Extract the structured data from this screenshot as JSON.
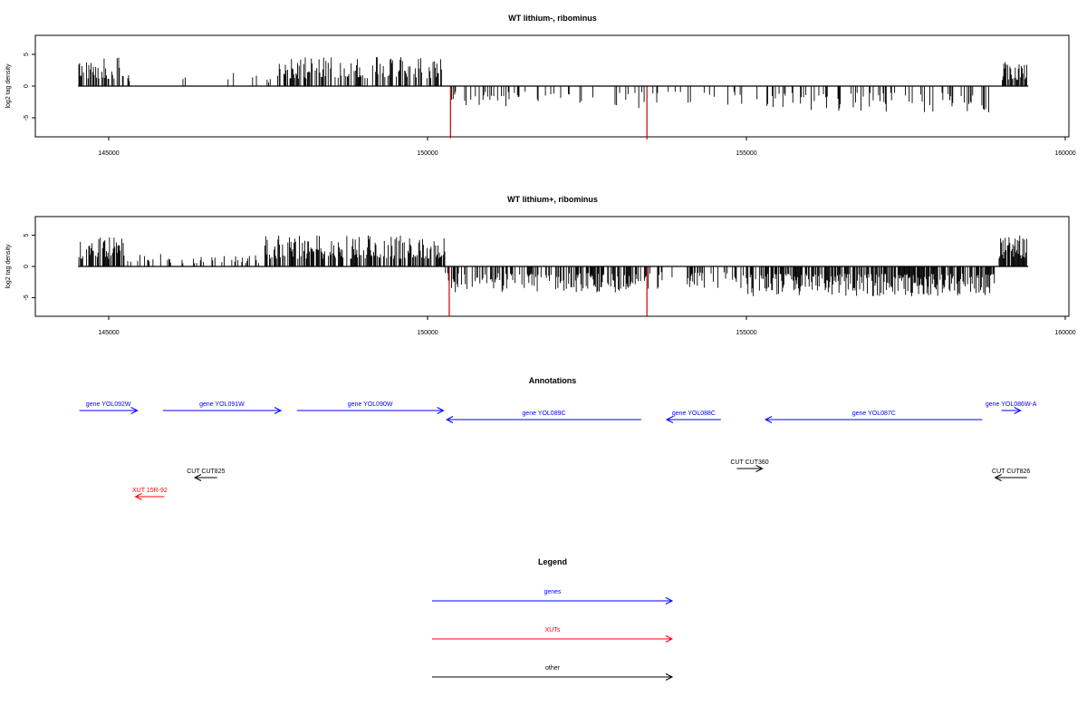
{
  "chart_data": [
    {
      "type": "bar",
      "title": "WT lithium-, ribominus",
      "xlabel": "",
      "ylabel": "log2 tag density",
      "xlim": [
        144000,
        160000
      ],
      "ylim": [
        -8,
        8
      ],
      "x_ticks": [
        145000,
        150000,
        155000,
        160000
      ],
      "y_ticks": [
        5,
        0,
        -5
      ],
      "baseline": 0,
      "positive_bar_color": "#000000",
      "negative_bar_color": "#000000",
      "highlight_color": "#cc0000",
      "highlights": [
        {
          "x": 150360,
          "value": -8.2
        },
        {
          "x": 153440,
          "value": -8.4
        }
      ],
      "regions": [
        {
          "x": [
            144520,
            145250
          ],
          "strand": "+",
          "peak": 4.5,
          "density": 0.6
        },
        {
          "x": [
            145300,
            147600
          ],
          "strand": "+",
          "peak": 2.2,
          "density": 0.05
        },
        {
          "x": [
            147650,
            150270
          ],
          "strand": "+",
          "peak": 4.6,
          "density": 0.5
        },
        {
          "x": [
            150270,
            151800
          ],
          "strand": "-",
          "peak": -3.2,
          "density": 0.18
        },
        {
          "x": [
            151800,
            153400
          ],
          "strand": "-",
          "peak": -3.5,
          "density": 0.12
        },
        {
          "x": [
            153450,
            155500
          ],
          "strand": "-",
          "peak": -3.5,
          "density": 0.15
        },
        {
          "x": [
            155500,
            158900
          ],
          "strand": "-",
          "peak": -4.2,
          "density": 0.25
        },
        {
          "x": [
            159000,
            159400
          ],
          "strand": "+",
          "peak": 3.8,
          "density": 0.65
        }
      ]
    },
    {
      "type": "bar",
      "title": "WT lithium+, ribominus",
      "xlabel": "",
      "ylabel": "log2 tag density",
      "xlim": [
        144000,
        160000
      ],
      "ylim": [
        -8,
        8
      ],
      "x_ticks": [
        145000,
        150000,
        155000,
        160000
      ],
      "y_ticks": [
        5,
        0,
        -5
      ],
      "baseline": 0,
      "positive_bar_color": "#000000",
      "negative_bar_color": "#000000",
      "highlight_color": "#cc0000",
      "highlights": [
        {
          "x": 150340,
          "value": -8.0
        },
        {
          "x": 153440,
          "value": -8.0
        }
      ],
      "regions": [
        {
          "x": [
            144520,
            145250
          ],
          "strand": "+",
          "peak": 4.8,
          "density": 0.75
        },
        {
          "x": [
            145250,
            147450
          ],
          "strand": "+",
          "peak": 2.0,
          "density": 0.25
        },
        {
          "x": [
            147450,
            150280
          ],
          "strand": "+",
          "peak": 5.0,
          "density": 0.65
        },
        {
          "x": [
            150280,
            153450
          ],
          "strand": "-",
          "peak": -4.2,
          "density": 0.55
        },
        {
          "x": [
            153450,
            155000
          ],
          "strand": "-",
          "peak": -3.6,
          "density": 0.3
        },
        {
          "x": [
            155000,
            158900
          ],
          "strand": "-",
          "peak": -4.8,
          "density": 0.75
        },
        {
          "x": [
            158950,
            159400
          ],
          "strand": "+",
          "peak": 5.2,
          "density": 0.8
        }
      ]
    }
  ],
  "annotations": {
    "title": "Annotations",
    "xlim": [
      144000,
      160000
    ],
    "rows": [
      {
        "label": "gene YOL092W",
        "start": 144540,
        "end": 145450,
        "strand": "+",
        "type": "gene",
        "row": 0
      },
      {
        "label": "gene YOL091W",
        "start": 145850,
        "end": 147700,
        "strand": "+",
        "type": "gene",
        "row": 0
      },
      {
        "label": "gene YOL090W",
        "start": 147950,
        "end": 150250,
        "strand": "+",
        "type": "gene",
        "row": 0
      },
      {
        "label": "gene YOL089C",
        "start": 150300,
        "end": 153350,
        "strand": "-",
        "type": "gene",
        "row": 1
      },
      {
        "label": "gene YOL088C",
        "start": 153750,
        "end": 154600,
        "strand": "-",
        "type": "gene",
        "row": 1
      },
      {
        "label": "gene YOL087C",
        "start": 155300,
        "end": 158700,
        "strand": "-",
        "type": "gene",
        "row": 1
      },
      {
        "label": "gene YOL086W-A",
        "start": 159000,
        "end": 159300,
        "strand": "+",
        "type": "gene",
        "row": 0
      },
      {
        "label": "CUT CUT825",
        "start": 146350,
        "end": 146700,
        "strand": "-",
        "type": "other",
        "row": 3
      },
      {
        "label": "CUT CUT360",
        "start": 154850,
        "end": 155250,
        "strand": "+",
        "type": "other",
        "row": 2
      },
      {
        "label": "CUT CUT826",
        "start": 158900,
        "end": 159400,
        "strand": "-",
        "type": "other",
        "row": 3
      },
      {
        "label": "XUT 15R-92",
        "start": 145420,
        "end": 145870,
        "strand": "-",
        "type": "xut",
        "row": 4
      }
    ]
  },
  "legend": {
    "title": "Legend",
    "items": [
      {
        "label": "genes",
        "color": "#0000ff"
      },
      {
        "label": "XUTs",
        "color": "#ff0000"
      },
      {
        "label": "other",
        "color": "#000000"
      }
    ]
  },
  "colors": {
    "gene": "#0000ff",
    "xut": "#ff0000",
    "other": "#000000"
  }
}
